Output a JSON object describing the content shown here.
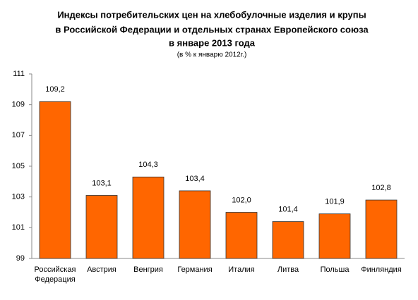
{
  "chart_data": {
    "type": "bar",
    "title": [
      "Индексы потребительских цен на хлебобулочные изделия и крупы",
      "в Российской Федерации и отдельных странах Европейского союза",
      "в январе 2013 года"
    ],
    "subtitle": "(в % к январю 2012г.)",
    "categories": [
      "Российская Федерация",
      "Австрия",
      "Венгрия",
      "Германия",
      "Италия",
      "Литва",
      "Польша",
      "Финляндия"
    ],
    "values": [
      109.2,
      103.1,
      104.3,
      103.4,
      102.0,
      101.4,
      101.9,
      102.8
    ],
    "value_labels": [
      "109,2",
      "103,1",
      "104,3",
      "103,4",
      "102,0",
      "101,4",
      "101,9",
      "102,8"
    ],
    "color": "#ff6600",
    "ylim": [
      99,
      111
    ],
    "yticks": [
      99,
      101,
      103,
      105,
      107,
      109,
      111
    ],
    "grid": false
  }
}
